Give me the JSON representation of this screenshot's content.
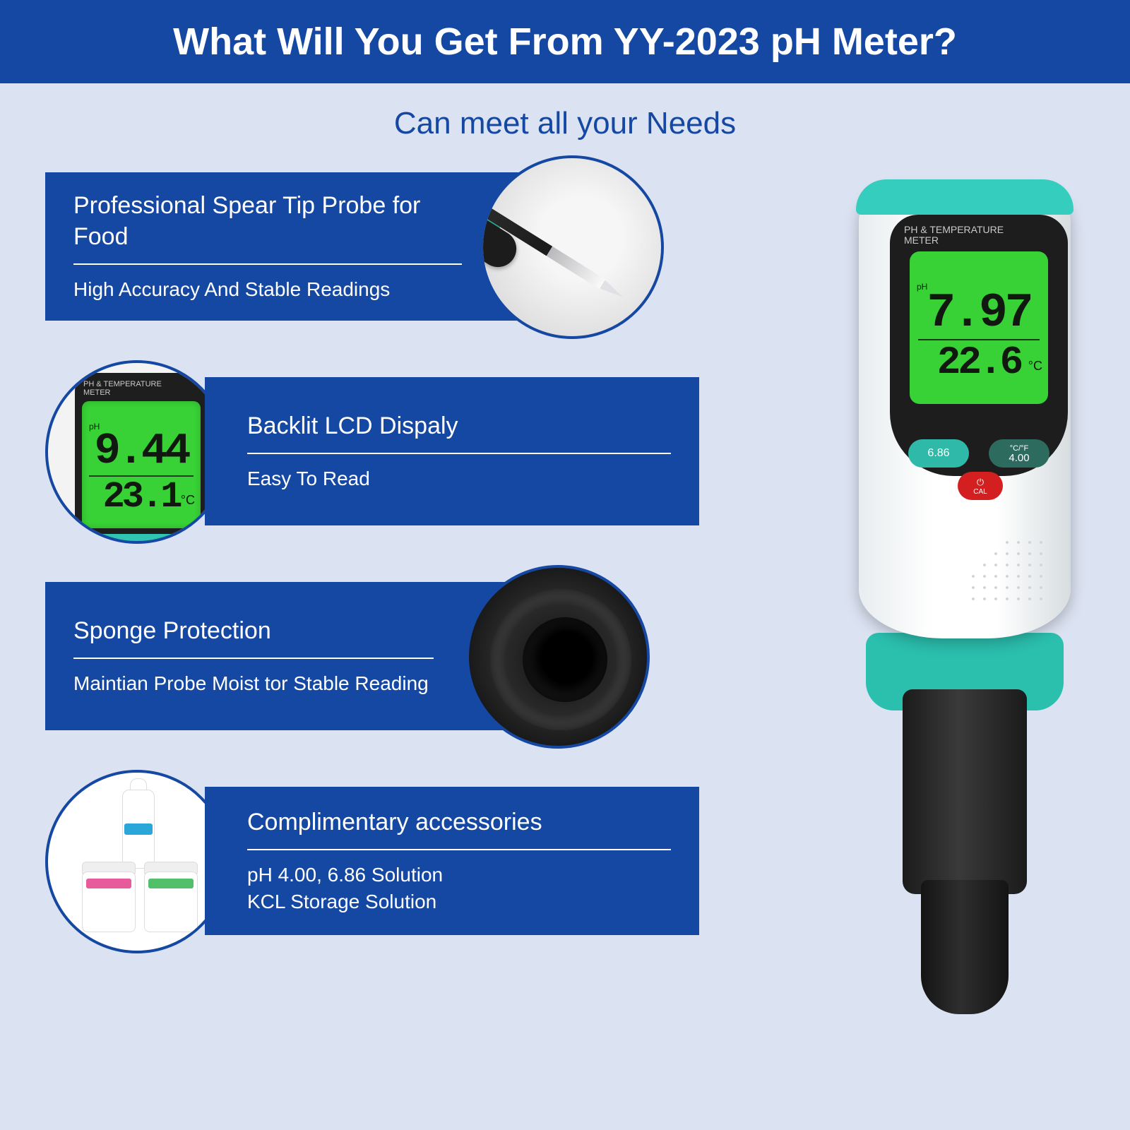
{
  "header": {
    "title": "What Will You Get From YY-2023 pH Meter?"
  },
  "subtitle": "Can meet all your Needs",
  "features": [
    {
      "title": "Professional Spear Tip Probe for Food",
      "desc": "High Accuracy And Stable Readings"
    },
    {
      "title": "Backlit LCD Dispaly",
      "desc": "Easy To Read"
    },
    {
      "title": "Sponge Protection",
      "desc": "Maintian Probe Moist tor Stable Reading"
    },
    {
      "title": "Complimentary accessories",
      "desc": "pH 4.00, 6.86 Solution\nKCL Storage Solution"
    }
  ],
  "lcd_circle": {
    "label": "PH & TEMPERATURE\nMETER",
    "ph_label": "pH",
    "ph_value": "9.44",
    "temp_value": "23.1",
    "temp_unit": "°C"
  },
  "device": {
    "label": "PH & TEMPERATURE\nMETER",
    "ph_label": "pH",
    "ph_value": "7.97",
    "temp_value": "22.6",
    "temp_unit": "°C",
    "btn_686": "6.86",
    "btn_400_top": "°C/°F",
    "btn_400_bot": "4.00",
    "btn_cal_pwr": "⏻",
    "btn_cal": "CAL"
  },
  "colors": {
    "header_bg": "#1548a3",
    "page_bg": "#dbe2f1",
    "lcd_green": "#38d236",
    "teal": "#2fc5b2",
    "red": "#d31f1f"
  }
}
